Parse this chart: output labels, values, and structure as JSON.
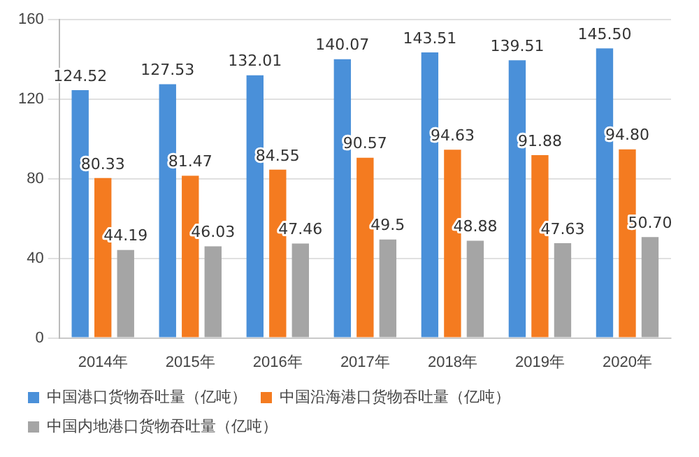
{
  "chart_data": {
    "type": "bar",
    "categories": [
      "2014年",
      "2015年",
      "2016年",
      "2017年",
      "2018年",
      "2019年",
      "2020年"
    ],
    "series": [
      {
        "name": "中国港口货物吞吐量（亿吨）",
        "color": "#4a90d9",
        "values": [
          124.52,
          127.53,
          132.01,
          140.07,
          143.51,
          139.51,
          145.5
        ],
        "value_labels": [
          "124.52",
          "127.53",
          "132.01",
          "140.07",
          "143.51",
          "139.51",
          "145.50"
        ]
      },
      {
        "name": "中国沿海港口货物吞吐量（亿吨）",
        "color": "#f47b20",
        "values": [
          80.33,
          81.47,
          84.55,
          90.57,
          94.63,
          91.88,
          94.8
        ],
        "value_labels": [
          "80.33",
          "81.47",
          "84.55",
          "90.57",
          "94.63",
          "91.88",
          "94.80"
        ]
      },
      {
        "name": "中国内地港口货物吞吐量（亿吨）",
        "color": "#a5a5a5",
        "values": [
          44.19,
          46.03,
          47.46,
          49.5,
          48.88,
          47.63,
          50.7
        ],
        "value_labels": [
          "44.19",
          "46.03",
          "47.46",
          "49.5",
          "48.88",
          "47.63",
          "50.70"
        ]
      }
    ],
    "ylim": [
      0,
      160
    ],
    "yticks": [
      0,
      40,
      80,
      120,
      160
    ],
    "grid": "y",
    "legend": "bottom"
  }
}
